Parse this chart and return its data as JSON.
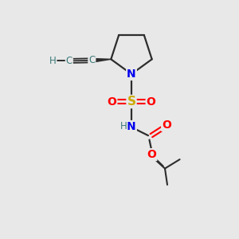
{
  "background_color": "#e8e8e8",
  "atom_colors": {
    "C": "#3d7a7a",
    "N": "#0000ee",
    "O": "#ff0000",
    "S": "#ccaa00",
    "H": "#3d7a7a"
  },
  "bond_color": "#2d2d2d",
  "figsize": [
    3.0,
    3.0
  ],
  "dpi": 100
}
